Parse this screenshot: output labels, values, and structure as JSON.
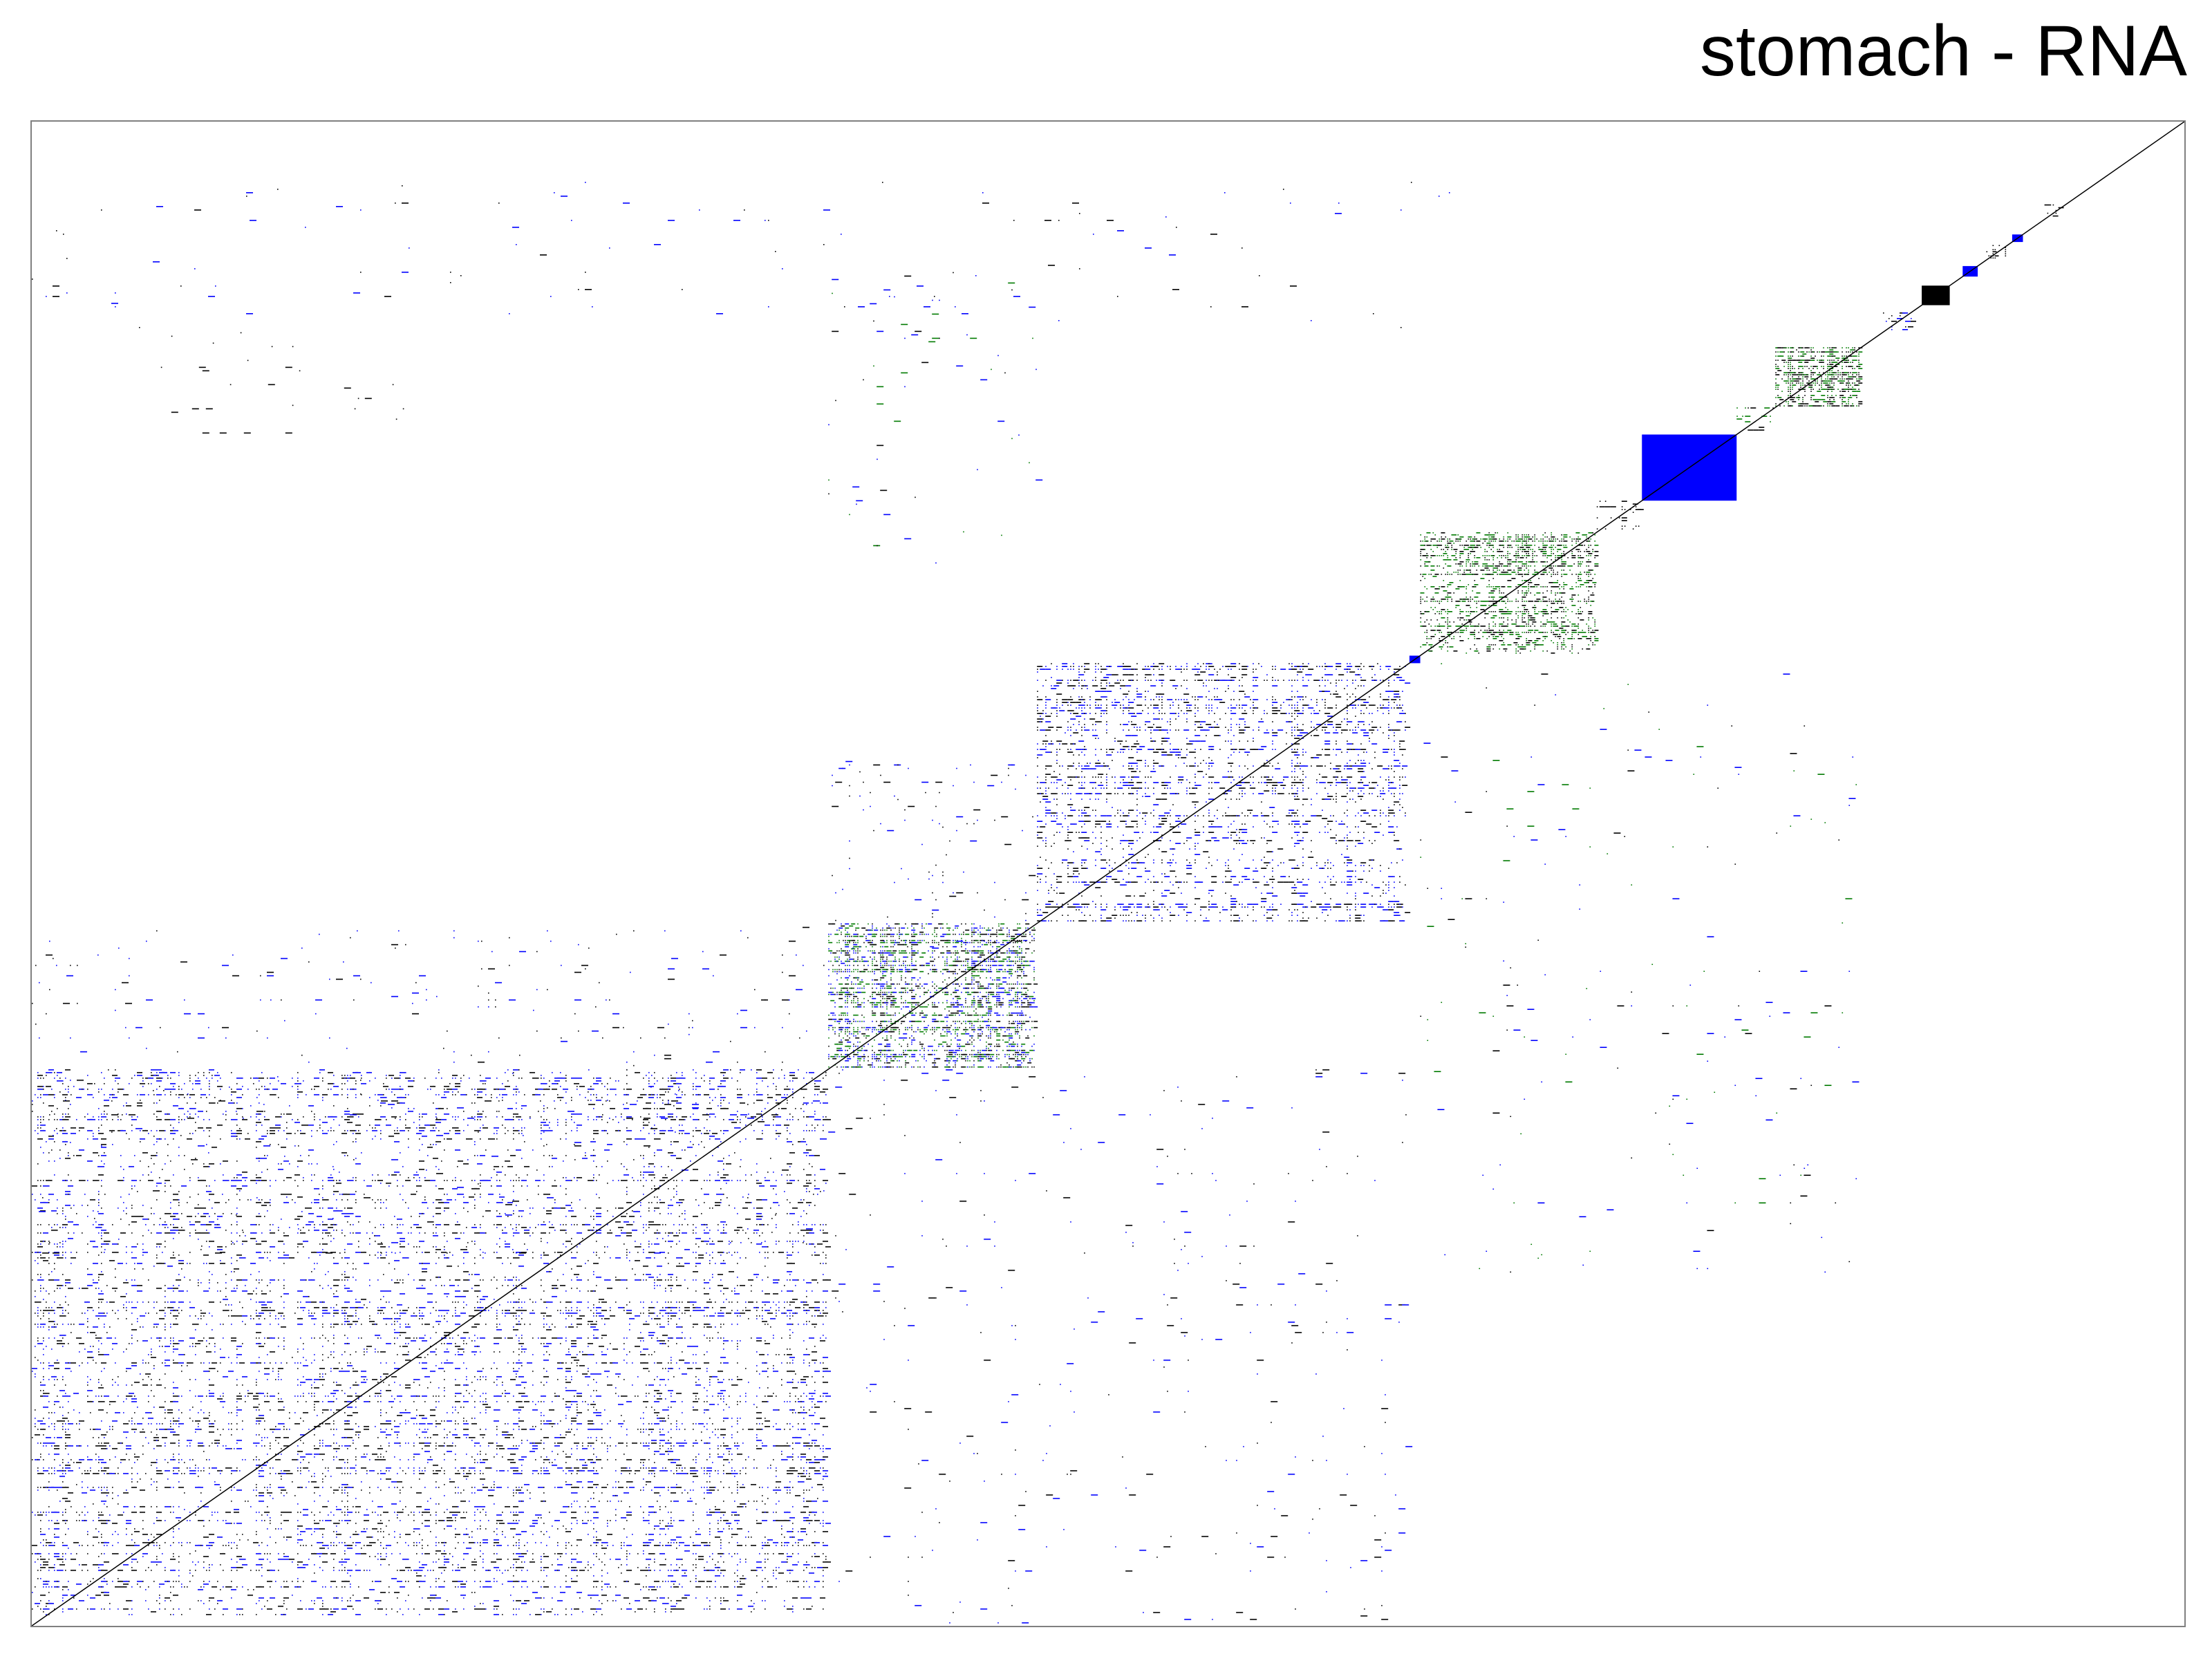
{
  "chart_data": {
    "type": "heatmap",
    "title": "stomach - RNA",
    "xlabel": "",
    "ylabel": "",
    "grid": false,
    "legend": "none",
    "colors": {
      "background": "#ffffff",
      "frame": "#808080",
      "black": "#000000",
      "blue": "#0000ff",
      "green": "#007a00"
    },
    "diagonal": true,
    "blocks": [
      {
        "x": [
          0.0,
          0.37
        ],
        "y": [
          0.0,
          0.37
        ],
        "pattern": "sparse",
        "density": 0.28,
        "colors": [
          "black",
          "blue"
        ]
      },
      {
        "x": [
          0.37,
          0.467
        ],
        "y": [
          0.37,
          0.467
        ],
        "pattern": "dense",
        "density": 0.55,
        "colors": [
          "green",
          "black",
          "blue"
        ]
      },
      {
        "x": [
          0.467,
          0.64
        ],
        "y": [
          0.467,
          0.64
        ],
        "pattern": "sparse",
        "density": 0.4,
        "colors": [
          "black",
          "blue"
        ]
      },
      {
        "x": [
          0.64,
          0.645
        ],
        "y": [
          0.64,
          0.645
        ],
        "pattern": "solid",
        "density": 1.0,
        "colors": [
          "blue"
        ]
      },
      {
        "x": [
          0.645,
          0.727
        ],
        "y": [
          0.645,
          0.727
        ],
        "pattern": "dense",
        "density": 0.55,
        "colors": [
          "green",
          "black"
        ]
      },
      {
        "x": [
          0.727,
          0.748
        ],
        "y": [
          0.727,
          0.748
        ],
        "pattern": "sparse",
        "density": 0.25,
        "colors": [
          "black"
        ]
      },
      {
        "x": [
          0.748,
          0.792
        ],
        "y": [
          0.748,
          0.792
        ],
        "pattern": "solid",
        "density": 1.0,
        "colors": [
          "blue"
        ]
      },
      {
        "x": [
          0.792,
          0.81
        ],
        "y": [
          0.792,
          0.81
        ],
        "pattern": "sparse",
        "density": 0.3,
        "colors": [
          "green",
          "black"
        ]
      },
      {
        "x": [
          0.81,
          0.85
        ],
        "y": [
          0.81,
          0.85
        ],
        "pattern": "dense",
        "density": 0.65,
        "colors": [
          "black",
          "green"
        ]
      },
      {
        "x": [
          0.86,
          0.875
        ],
        "y": [
          0.86,
          0.875
        ],
        "pattern": "sparse",
        "density": 0.3,
        "colors": [
          "black",
          "blue"
        ]
      },
      {
        "x": [
          0.878,
          0.891
        ],
        "y": [
          0.878,
          0.891
        ],
        "pattern": "solid",
        "density": 1.0,
        "colors": [
          "black"
        ]
      },
      {
        "x": [
          0.897,
          0.904
        ],
        "y": [
          0.897,
          0.904
        ],
        "pattern": "solid",
        "density": 1.0,
        "colors": [
          "blue"
        ]
      },
      {
        "x": [
          0.908,
          0.918
        ],
        "y": [
          0.908,
          0.918
        ],
        "pattern": "dense",
        "density": 0.7,
        "colors": [
          "black"
        ]
      },
      {
        "x": [
          0.92,
          0.925
        ],
        "y": [
          0.92,
          0.925
        ],
        "pattern": "solid",
        "density": 1.0,
        "colors": [
          "blue"
        ]
      },
      {
        "x": [
          0.935,
          0.945
        ],
        "y": [
          0.935,
          0.945
        ],
        "pattern": "sparse",
        "density": 0.4,
        "colors": [
          "black"
        ]
      }
    ],
    "offdiagonal_bands": [
      {
        "x": [
          0.37,
          0.467
        ],
        "y": [
          0.44,
          0.575
        ],
        "density": 0.06,
        "colors": [
          "black",
          "blue"
        ]
      },
      {
        "x": [
          0.0,
          0.37
        ],
        "y": [
          0.37,
          0.467
        ],
        "density": 0.04,
        "colors": [
          "black",
          "blue"
        ]
      },
      {
        "x": [
          0.0,
          0.37
        ],
        "y": [
          0.245,
          0.37
        ],
        "density": 0.03,
        "colors": [
          "black",
          "blue"
        ]
      },
      {
        "x": [
          0.37,
          0.64
        ],
        "y": [
          0.0,
          0.37
        ],
        "density": 0.02,
        "colors": [
          "black",
          "blue"
        ]
      },
      {
        "x": [
          0.645,
          0.85
        ],
        "y": [
          0.23,
          0.64
        ],
        "density": 0.015,
        "colors": [
          "black",
          "blue",
          "green"
        ]
      },
      {
        "x": [
          0.37,
          0.47
        ],
        "y": [
          0.7,
          0.9
        ],
        "density": 0.02,
        "colors": [
          "black",
          "blue",
          "green"
        ]
      },
      {
        "x": [
          0.06,
          0.18
        ],
        "y": [
          0.79,
          0.86
        ],
        "density": 0.03,
        "colors": [
          "black"
        ]
      },
      {
        "x": [
          0.0,
          0.66
        ],
        "y": [
          0.86,
          0.96
        ],
        "density": 0.01,
        "colors": [
          "black",
          "blue"
        ]
      }
    ]
  }
}
